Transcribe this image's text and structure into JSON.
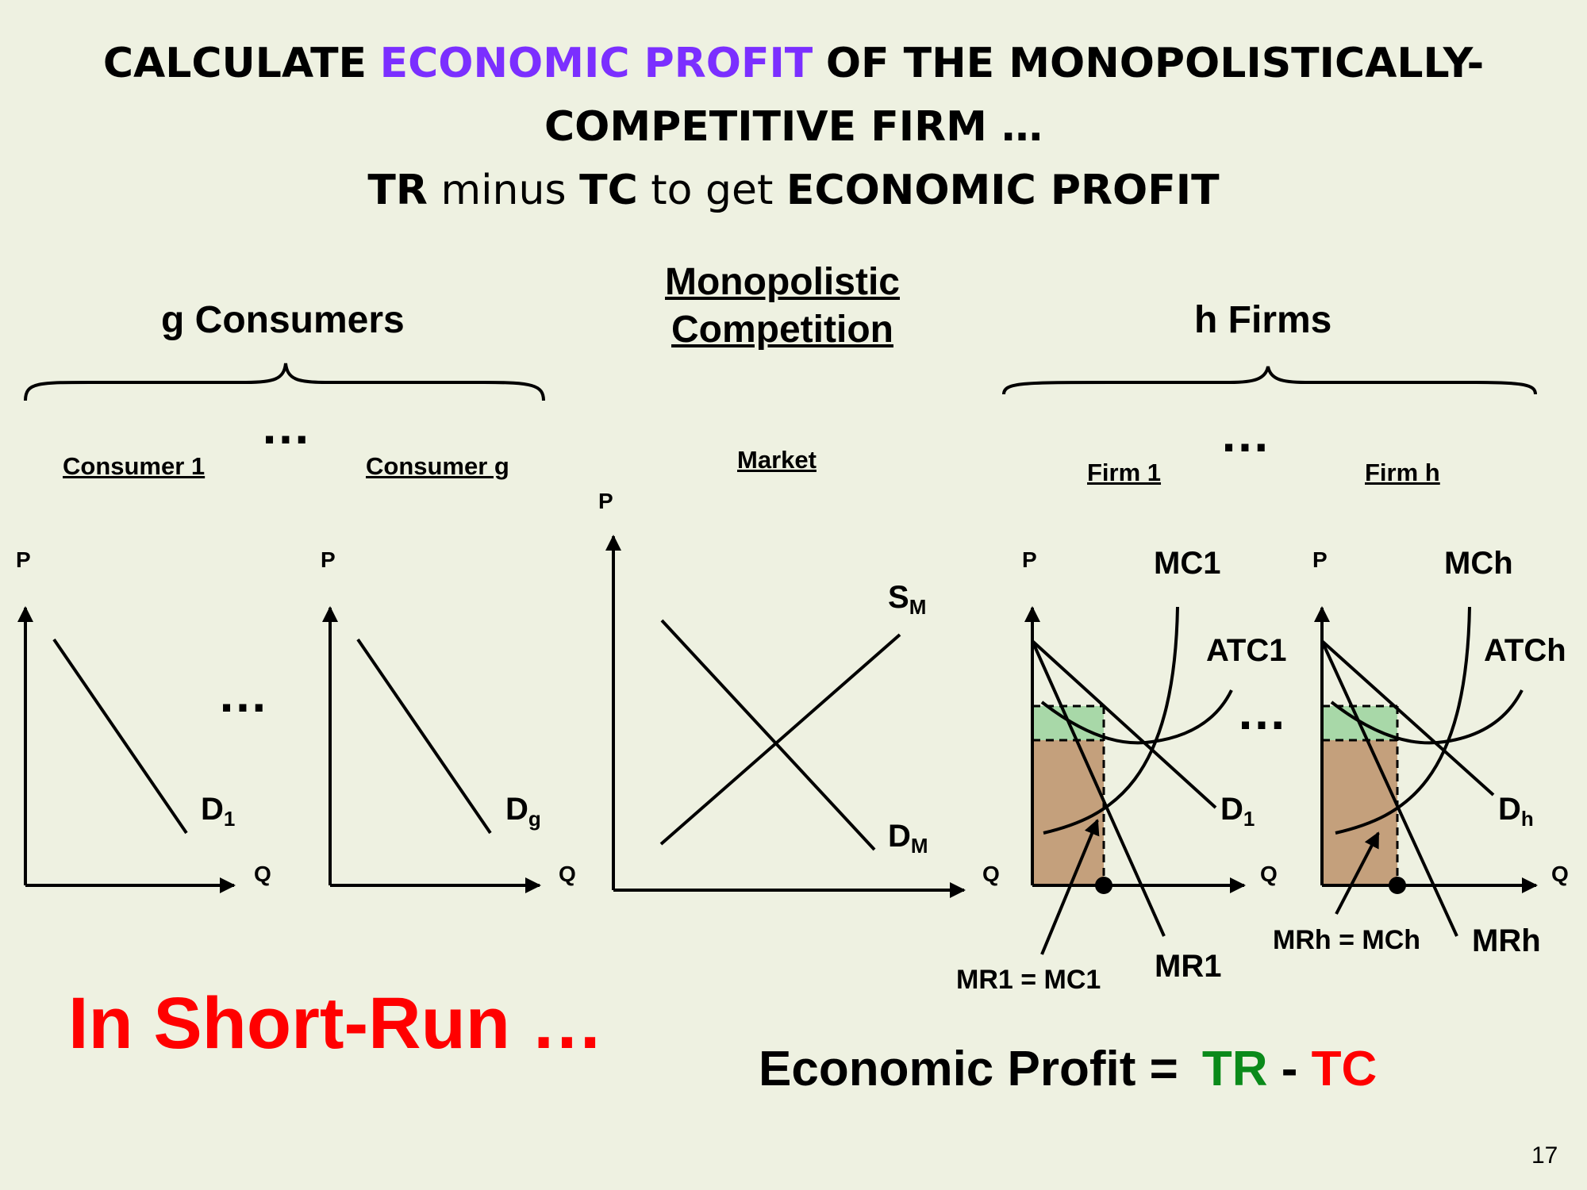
{
  "title": {
    "line1_pre": "CALCULATE",
    "line1_highlight": "ECONOMIC PROFIT",
    "line1_post": "OF THE MONOPOLISTICALLY-",
    "line2": "COMPETITIVE FIRM …",
    "line3_tr": "TR",
    "line3_minus": "minus",
    "line3_tc": "TC",
    "line3_to_get": "to get",
    "line3_profit": "ECONOMIC PROFIT"
  },
  "groups": {
    "consumers": "g Consumers",
    "market_line1": "Monopolistic",
    "market_line2": "Competition",
    "firms": "h Firms"
  },
  "panels": {
    "consumer1": "Consumer 1",
    "consumerg": "Consumer g",
    "market": "Market",
    "firm1": "Firm 1",
    "firmh": "Firm h"
  },
  "axes": {
    "p": "P",
    "q": "Q"
  },
  "ellipsis": "…",
  "curves": {
    "d": "D",
    "sub_1": "1",
    "sub_g": "g",
    "sub_h": "h",
    "s": "S",
    "sub_m": "M",
    "mc1": "MC1",
    "atc1": "ATC1",
    "mr1": "MR1",
    "mr1_eq": "MR1 = MC1",
    "mch": "MCh",
    "atch": "ATCh",
    "mrh": "MRh",
    "mrh_eq": "MRh = MCh"
  },
  "footer": {
    "short_run": "In Short-Run …",
    "econ_profit": "Economic Profit =",
    "tr": "TR",
    "minus": "-",
    "tc": "TC",
    "page": "17"
  },
  "colors": {
    "highlight": "#7b2fff",
    "profit_area": "#a8d8a8",
    "cost_area": "#c4a07c",
    "short_run": "#ff0000",
    "tr": "#0a8a1a",
    "tc": "#ff0000"
  }
}
